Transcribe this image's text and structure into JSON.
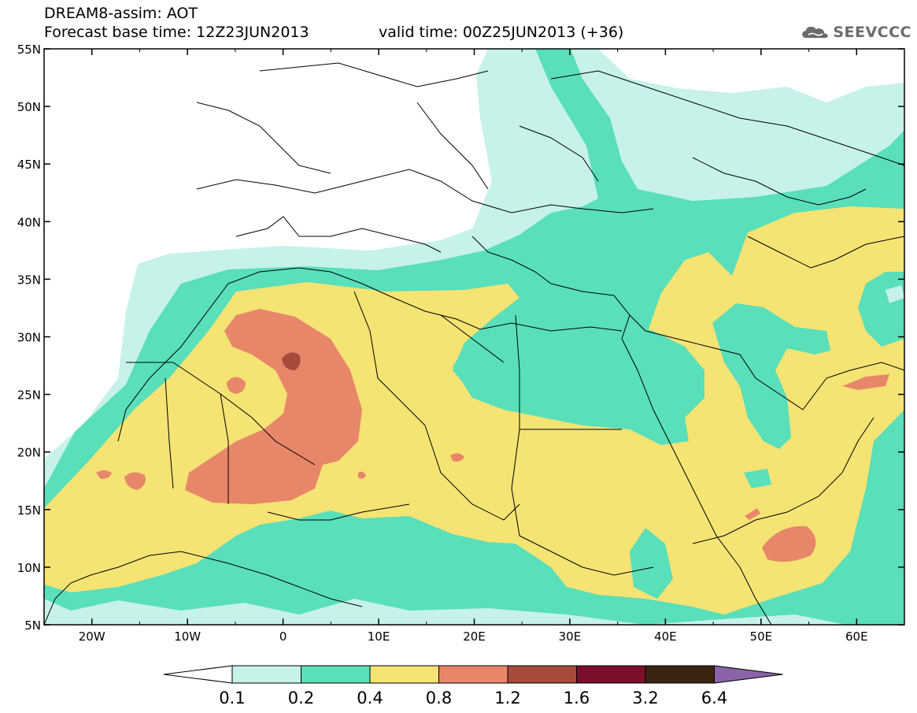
{
  "header": {
    "line1": "DREAM8-assim: AOT",
    "line2": "Forecast base time: 12Z23JUN2013",
    "valid": "valid time: 00Z25JUN2013 (+36)"
  },
  "logo": {
    "text": "SEEVCCC",
    "icon": "cloud-icon",
    "color": "#6b6b6b"
  },
  "map": {
    "lon_range": [
      -25,
      65
    ],
    "lat_range": [
      5,
      55
    ],
    "lat_ticks": [
      "5N",
      "10N",
      "15N",
      "20N",
      "25N",
      "30N",
      "35N",
      "40N",
      "45N",
      "50N",
      "55N"
    ],
    "lon_ticks": [
      "20W",
      "10W",
      "0",
      "10E",
      "20E",
      "30E",
      "40E",
      "50E",
      "60E"
    ]
  },
  "colorbar": {
    "labels": [
      "0.1",
      "0.2",
      "0.4",
      "0.8",
      "1.2",
      "1.6",
      "3.2",
      "6.4"
    ],
    "colors": [
      "#ffffff",
      "#c6f2ea",
      "#59dfb9",
      "#f5e374",
      "#e8866a",
      "#a64a3c",
      "#7a0e2b",
      "#3c2412",
      "#8a63a8"
    ]
  }
}
